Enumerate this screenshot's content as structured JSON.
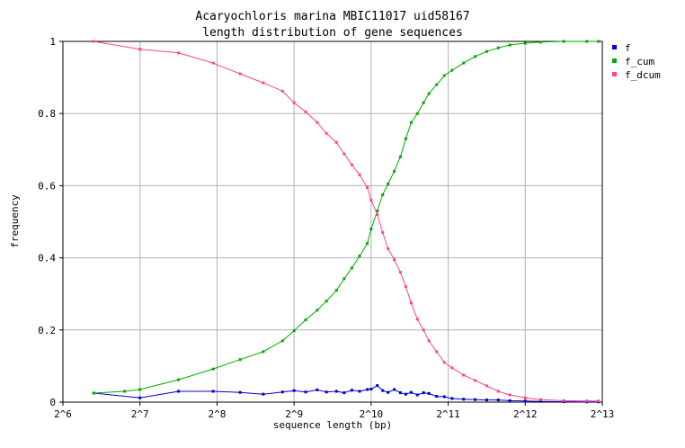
{
  "chart_data": {
    "type": "line",
    "title": [
      "Acaryochloris marina MBIC11017 uid58167",
      "length distribution of gene sequences"
    ],
    "xlabel": "sequence length (bp)",
    "ylabel": "frequency",
    "x_scale": "log2",
    "xlim": [
      6,
      13
    ],
    "ylim": [
      0,
      1
    ],
    "xticks": [
      {
        "value": 6,
        "label": "2^6"
      },
      {
        "value": 7,
        "label": "2^7"
      },
      {
        "value": 8,
        "label": "2^8"
      },
      {
        "value": 9,
        "label": "2^9"
      },
      {
        "value": 10,
        "label": "2^10"
      },
      {
        "value": 11,
        "label": "2^11"
      },
      {
        "value": 12,
        "label": "2^12"
      },
      {
        "value": 13,
        "label": "2^13"
      }
    ],
    "yticks": [
      {
        "value": 0,
        "label": "0"
      },
      {
        "value": 0.2,
        "label": "0.2"
      },
      {
        "value": 0.4,
        "label": "0.4"
      },
      {
        "value": 0.6,
        "label": "0.6"
      },
      {
        "value": 0.8,
        "label": "0.8"
      },
      {
        "value": 1,
        "label": "1"
      }
    ],
    "grid": true,
    "legend_position": "right",
    "series": [
      {
        "name": "f",
        "color": "#0000cc",
        "points": [
          [
            6.4,
            0.025
          ],
          [
            7.0,
            0.012
          ],
          [
            7.5,
            0.03
          ],
          [
            7.95,
            0.03
          ],
          [
            8.3,
            0.027
          ],
          [
            8.6,
            0.022
          ],
          [
            8.85,
            0.028
          ],
          [
            9.0,
            0.032
          ],
          [
            9.15,
            0.028
          ],
          [
            9.3,
            0.034
          ],
          [
            9.42,
            0.028
          ],
          [
            9.55,
            0.03
          ],
          [
            9.65,
            0.026
          ],
          [
            9.75,
            0.033
          ],
          [
            9.85,
            0.03
          ],
          [
            9.95,
            0.035
          ],
          [
            10.0,
            0.036
          ],
          [
            10.08,
            0.046
          ],
          [
            10.15,
            0.032
          ],
          [
            10.22,
            0.027
          ],
          [
            10.3,
            0.035
          ],
          [
            10.38,
            0.026
          ],
          [
            10.45,
            0.022
          ],
          [
            10.52,
            0.027
          ],
          [
            10.6,
            0.02
          ],
          [
            10.68,
            0.026
          ],
          [
            10.75,
            0.024
          ],
          [
            10.85,
            0.016
          ],
          [
            10.95,
            0.015
          ],
          [
            11.05,
            0.01
          ],
          [
            11.2,
            0.008
          ],
          [
            11.35,
            0.007
          ],
          [
            11.5,
            0.006
          ],
          [
            11.65,
            0.006
          ],
          [
            11.8,
            0.004
          ],
          [
            12.0,
            0.003
          ],
          [
            12.2,
            0.002
          ],
          [
            12.5,
            0.001
          ],
          [
            12.8,
            0.0005
          ],
          [
            12.95,
            0.0005
          ]
        ]
      },
      {
        "name": "f_cum",
        "color": "#00aa00",
        "points": [
          [
            6.4,
            0.025
          ],
          [
            6.8,
            0.03
          ],
          [
            7.0,
            0.035
          ],
          [
            7.5,
            0.062
          ],
          [
            7.95,
            0.092
          ],
          [
            8.3,
            0.118
          ],
          [
            8.6,
            0.14
          ],
          [
            8.85,
            0.17
          ],
          [
            9.0,
            0.198
          ],
          [
            9.15,
            0.228
          ],
          [
            9.3,
            0.255
          ],
          [
            9.42,
            0.28
          ],
          [
            9.55,
            0.31
          ],
          [
            9.65,
            0.342
          ],
          [
            9.75,
            0.372
          ],
          [
            9.85,
            0.405
          ],
          [
            9.95,
            0.44
          ],
          [
            10.0,
            0.48
          ],
          [
            10.08,
            0.53
          ],
          [
            10.15,
            0.575
          ],
          [
            10.22,
            0.605
          ],
          [
            10.3,
            0.64
          ],
          [
            10.38,
            0.68
          ],
          [
            10.45,
            0.73
          ],
          [
            10.52,
            0.775
          ],
          [
            10.6,
            0.8
          ],
          [
            10.68,
            0.83
          ],
          [
            10.75,
            0.855
          ],
          [
            10.85,
            0.88
          ],
          [
            10.95,
            0.905
          ],
          [
            11.05,
            0.92
          ],
          [
            11.2,
            0.94
          ],
          [
            11.35,
            0.958
          ],
          [
            11.5,
            0.972
          ],
          [
            11.65,
            0.982
          ],
          [
            11.8,
            0.99
          ],
          [
            12.0,
            0.995
          ],
          [
            12.2,
            0.998
          ],
          [
            12.5,
            1.0
          ],
          [
            12.8,
            1.0
          ],
          [
            12.95,
            1.0
          ]
        ]
      },
      {
        "name": "f_dcum",
        "color": "#ff4488",
        "points": [
          [
            6.4,
            1.0
          ],
          [
            7.0,
            0.978
          ],
          [
            7.5,
            0.968
          ],
          [
            7.95,
            0.94
          ],
          [
            8.3,
            0.91
          ],
          [
            8.6,
            0.885
          ],
          [
            8.85,
            0.862
          ],
          [
            9.0,
            0.83
          ],
          [
            9.15,
            0.805
          ],
          [
            9.3,
            0.775
          ],
          [
            9.42,
            0.745
          ],
          [
            9.55,
            0.72
          ],
          [
            9.65,
            0.688
          ],
          [
            9.75,
            0.658
          ],
          [
            9.85,
            0.63
          ],
          [
            9.95,
            0.595
          ],
          [
            10.0,
            0.56
          ],
          [
            10.08,
            0.52
          ],
          [
            10.15,
            0.47
          ],
          [
            10.22,
            0.425
          ],
          [
            10.3,
            0.395
          ],
          [
            10.38,
            0.36
          ],
          [
            10.45,
            0.32
          ],
          [
            10.52,
            0.275
          ],
          [
            10.6,
            0.23
          ],
          [
            10.68,
            0.2
          ],
          [
            10.75,
            0.17
          ],
          [
            10.85,
            0.14
          ],
          [
            10.95,
            0.11
          ],
          [
            11.05,
            0.095
          ],
          [
            11.2,
            0.075
          ],
          [
            11.35,
            0.06
          ],
          [
            11.5,
            0.045
          ],
          [
            11.65,
            0.03
          ],
          [
            11.8,
            0.02
          ],
          [
            12.0,
            0.012
          ],
          [
            12.2,
            0.007
          ],
          [
            12.5,
            0.004
          ],
          [
            12.8,
            0.003
          ],
          [
            12.95,
            0.003
          ]
        ]
      }
    ]
  }
}
